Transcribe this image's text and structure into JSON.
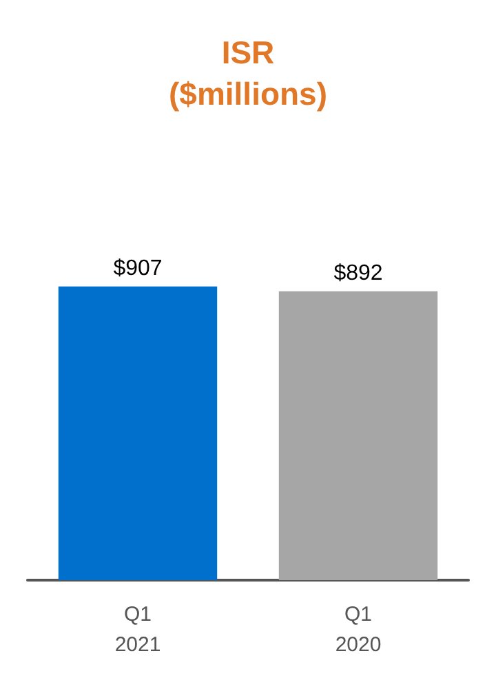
{
  "chart_data": {
    "type": "bar",
    "title": "ISR\n($millions)",
    "categories": [
      "Q1\n2021",
      "Q1\n2020"
    ],
    "values": [
      907,
      892
    ],
    "colors": [
      "#0070cc",
      "#a6a6a6"
    ],
    "value_labels": [
      "$907",
      "$892"
    ]
  }
}
